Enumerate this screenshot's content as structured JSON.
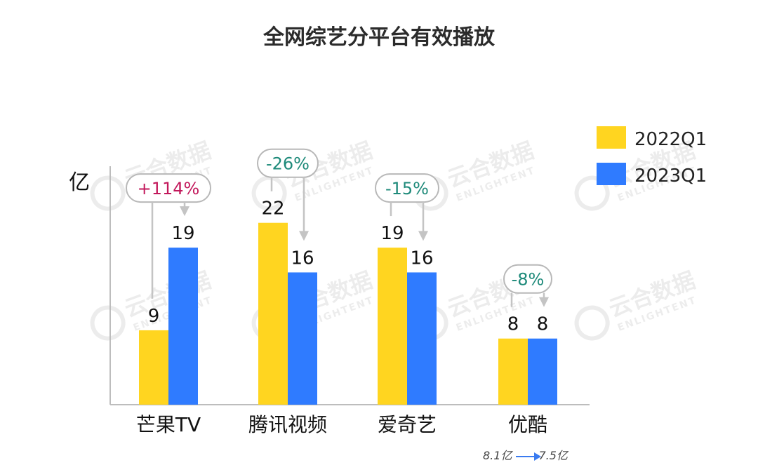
{
  "chart_data": {
    "type": "bar",
    "title": "全网综艺分平台有效播放",
    "ylabel": "亿",
    "ylim": [
      0,
      28
    ],
    "categories": [
      "芒果TV",
      "腾讯视频",
      "爱奇艺",
      "优酷"
    ],
    "series": [
      {
        "name": "2022Q1",
        "values": [
          9,
          22,
          19,
          8
        ],
        "color": "#FFD520"
      },
      {
        "name": "2023Q1",
        "values": [
          19,
          16,
          16,
          8
        ],
        "color": "#2F7BFF"
      }
    ],
    "changes": [
      "+114%",
      "-26%",
      "-15%",
      "-8%"
    ],
    "change_colors": [
      "#C2185B",
      "#1E8A7A",
      "#1E8A7A",
      "#1E8A7A"
    ],
    "legend_position": "top-right",
    "grid": false
  },
  "watermark": {
    "cn": "云合数据",
    "en": "ENLIGHTENT"
  },
  "footnote": {
    "from": "8.1亿",
    "to": "7.5亿"
  }
}
